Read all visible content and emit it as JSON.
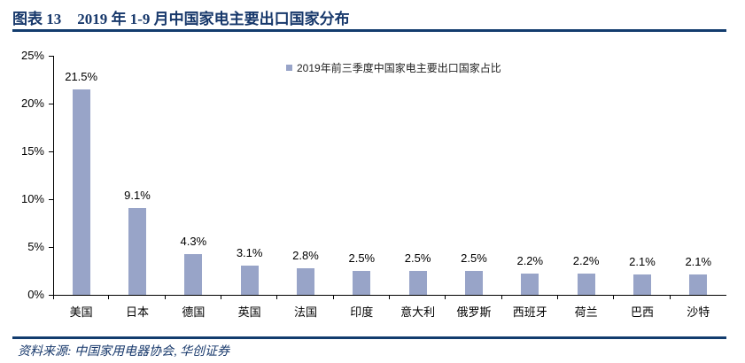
{
  "header": {
    "figure_label": "图表 13",
    "title": "2019 年 1-9 月中国家电主要出口国家分布"
  },
  "chart_data": {
    "type": "bar",
    "title": "2019 年 1-9 月中国家电主要出口国家分布",
    "legend": "2019年前三季度中国家电主要出口国家占比",
    "legend_position": "top-center",
    "grid": false,
    "categories": [
      "美国",
      "日本",
      "德国",
      "英国",
      "法国",
      "印度",
      "意大利",
      "俄罗斯",
      "西班牙",
      "荷兰",
      "巴西",
      "沙特"
    ],
    "values": [
      21.5,
      9.1,
      4.3,
      3.1,
      2.8,
      2.5,
      2.5,
      2.5,
      2.2,
      2.2,
      2.1,
      2.1
    ],
    "value_labels": [
      "21.5%",
      "9.1%",
      "4.3%",
      "3.1%",
      "2.8%",
      "2.5%",
      "2.5%",
      "2.5%",
      "2.2%",
      "2.2%",
      "2.1%",
      "2.1%"
    ],
    "xlabel": "",
    "ylabel": "",
    "ylim": [
      0,
      25
    ],
    "y_ticks": [
      "0%",
      "5%",
      "10%",
      "15%",
      "20%",
      "25%"
    ],
    "y_tick_values": [
      0,
      5,
      10,
      15,
      20,
      25
    ],
    "bar_color": "#98A4C8"
  },
  "footer": {
    "source": "资料来源: 中国家用电器协会, 华创证券"
  },
  "colors": {
    "accent_navy": "#17386B",
    "rule_navy": "#123C6E",
    "bar_fill": "#98A4C8",
    "axis_black": "#000000"
  }
}
